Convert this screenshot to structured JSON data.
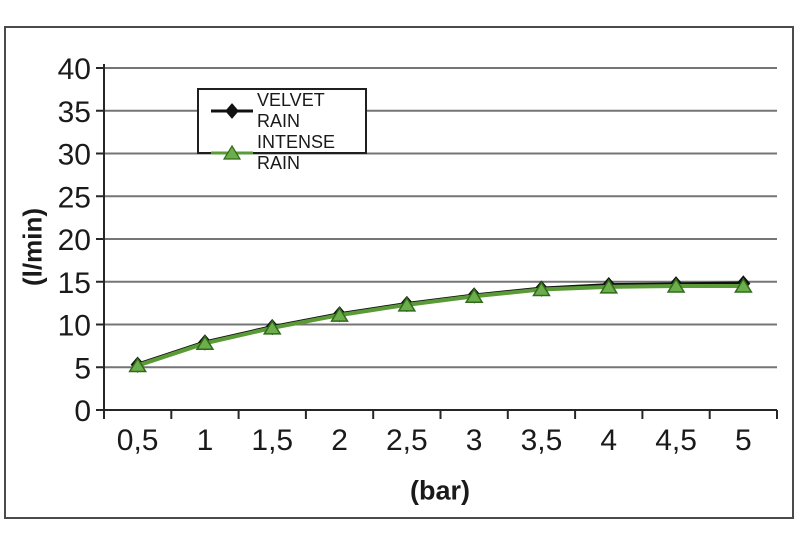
{
  "chart_data": {
    "type": "line",
    "title": "",
    "xlabel": "(bar)",
    "ylabel": "(l/min)",
    "categories": [
      "0,5",
      "1",
      "1,5",
      "2",
      "2,5",
      "3",
      "3,5",
      "4",
      "4,5",
      "5"
    ],
    "series": [
      {
        "name": "VELVET RAIN",
        "marker": "diamond",
        "color": "#111111",
        "marker_fill": "#111111",
        "marker_stroke": "#111111",
        "values": [
          5.3,
          7.9,
          9.7,
          11.2,
          12.4,
          13.4,
          14.2,
          14.6,
          14.7,
          14.8
        ]
      },
      {
        "name": "INTENSE RAIN",
        "marker": "triangle",
        "color": "#5a9b38",
        "marker_fill": "#6cae4b",
        "marker_stroke": "#2f6b1a",
        "values": [
          5.2,
          7.8,
          9.6,
          11.1,
          12.3,
          13.3,
          14.1,
          14.4,
          14.5,
          14.5
        ]
      }
    ],
    "ylim": [
      0,
      40
    ],
    "ytick_step": 5,
    "grid": "horizontal",
    "legend_position": "top-left-inside",
    "colors": {
      "gridline": "#757575",
      "axis": "#262626",
      "text": "#1a1a1a",
      "frame": "#4b4b4b",
      "background": "#ffffff"
    }
  }
}
